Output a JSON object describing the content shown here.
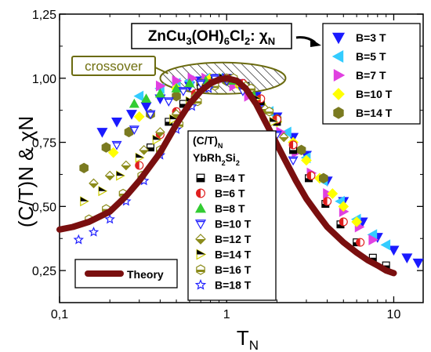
{
  "chart_data": {
    "type": "scatter",
    "x_scale": "log",
    "xlim": [
      0.1,
      15
    ],
    "ylim": [
      0.125,
      1.25
    ],
    "x_ticks": [
      0.1,
      1,
      10
    ],
    "x_tick_labels": [
      "0,1",
      "1",
      "10"
    ],
    "y_ticks": [
      0.25,
      0.5,
      0.75,
      1.0,
      1.25
    ],
    "y_tick_labels": [
      "0,25",
      "0,50",
      "0,75",
      "1,00",
      "1,25"
    ],
    "xlabel_main": "T",
    "xlabel_sub": "N",
    "ylabel": "(C/T)N & χN",
    "title_box": "ZnCu3(OH)6Cl2: χN",
    "annotation": "crossover",
    "theory_label": "Theory",
    "legend_right_header": "",
    "legend_left_header_1": "(C/T)N",
    "legend_left_header_2": "YbRh2Si2",
    "series_zn": [
      {
        "name": "B=3 T",
        "color": "#1a1aff",
        "marker": "triangle-down",
        "x": [
          0.18,
          0.22,
          0.27,
          0.33,
          0.4,
          0.5,
          0.6,
          0.7,
          0.85,
          1.0,
          1.2,
          1.5,
          2.0,
          2.5,
          3.0,
          4.0,
          5.0,
          6.5,
          8.0,
          10.0,
          12.0,
          14.0
        ],
        "y": [
          0.79,
          0.83,
          0.86,
          0.89,
          0.92,
          0.95,
          0.97,
          0.99,
          1.0,
          1.0,
          0.98,
          0.93,
          0.85,
          0.77,
          0.7,
          0.6,
          0.52,
          0.44,
          0.38,
          0.33,
          0.3,
          0.28
        ]
      },
      {
        "name": "B=5 T",
        "color": "#33ccff",
        "marker": "triangle-left",
        "x": [
          0.3,
          0.4,
          0.5,
          0.6,
          0.75,
          0.9,
          1.1,
          1.4,
          1.8,
          2.3,
          3.0,
          3.8,
          4.8,
          6.0,
          7.5,
          9.0
        ],
        "y": [
          0.93,
          0.96,
          0.98,
          0.99,
          1.0,
          1.0,
          0.98,
          0.94,
          0.87,
          0.79,
          0.69,
          0.6,
          0.52,
          0.45,
          0.39,
          0.35
        ]
      },
      {
        "name": "B=7 T",
        "color": "#e040e0",
        "marker": "triangle-right",
        "x": [
          0.4,
          0.5,
          0.62,
          0.75,
          0.9,
          1.1,
          1.35,
          1.7,
          2.1,
          2.6,
          3.2,
          4.0,
          5.0,
          6.2,
          7.5
        ],
        "y": [
          0.97,
          0.99,
          1.0,
          1.0,
          0.99,
          0.97,
          0.93,
          0.87,
          0.79,
          0.71,
          0.63,
          0.55,
          0.48,
          0.42,
          0.37
        ]
      },
      {
        "name": "B=10 T",
        "color": "#ffff00",
        "marker": "diamond",
        "x": [
          0.21,
          0.3,
          0.5,
          0.8,
          1.2,
          1.6,
          2.0,
          2.5,
          3.0,
          3.6,
          4.3,
          5.0,
          6.0
        ],
        "y": [
          0.71,
          0.85,
          0.96,
          1.0,
          0.97,
          0.9,
          0.83,
          0.75,
          0.68,
          0.61,
          0.55,
          0.5,
          0.44
        ]
      },
      {
        "name": "B=14 T",
        "color": "#7a7a20",
        "marker": "hexagon",
        "x": [
          0.14,
          0.19,
          0.26,
          0.35,
          0.5,
          0.7,
          1.0,
          1.4,
          2.0,
          2.8,
          3.8
        ],
        "y": [
          0.65,
          0.73,
          0.79,
          0.86,
          0.93,
          0.98,
          0.99,
          0.95,
          0.84,
          0.72,
          0.61
        ]
      }
    ],
    "series_yb": [
      {
        "name": "B=4 T",
        "color": "#000000",
        "marker": "square-half",
        "x": [
          0.35,
          0.45,
          0.55,
          0.7,
          0.85,
          1.0,
          1.3,
          1.6,
          2.0,
          2.5,
          3.1,
          3.9,
          4.8,
          6.0,
          7.5,
          9.0
        ],
        "y": [
          0.73,
          0.83,
          0.9,
          0.96,
          0.99,
          1.0,
          0.97,
          0.91,
          0.83,
          0.72,
          0.61,
          0.51,
          0.43,
          0.36,
          0.3,
          0.27
        ]
      },
      {
        "name": "B=6 T",
        "color": "#e02020",
        "marker": "circle-half",
        "x": [
          0.3,
          0.4,
          0.5,
          0.65,
          0.8,
          1.0,
          1.25,
          1.6,
          2.0,
          2.5,
          3.2,
          4.0,
          5.0,
          6.3
        ],
        "y": [
          0.66,
          0.78,
          0.87,
          0.94,
          0.98,
          1.0,
          0.98,
          0.92,
          0.84,
          0.74,
          0.62,
          0.52,
          0.44,
          0.36
        ]
      },
      {
        "name": "B=8 T",
        "color": "#33cc33",
        "marker": "triangle-up",
        "x": [
          0.28,
          0.33,
          0.4,
          0.5,
          0.6,
          0.75,
          0.9,
          1.1,
          1.4
        ],
        "y": [
          0.9,
          0.92,
          0.94,
          0.96,
          0.98,
          0.99,
          1.0,
          0.99,
          0.95
        ]
      },
      {
        "name": "B=10 T",
        "color": "#2020ff",
        "marker": "triangle-down-open",
        "x": [
          0.22,
          0.28,
          0.35,
          0.45,
          0.55,
          0.7,
          0.85,
          1.0,
          1.25,
          1.6,
          2.0,
          2.5
        ],
        "y": [
          0.74,
          0.8,
          0.86,
          0.91,
          0.95,
          0.98,
          1.0,
          0.99,
          0.95,
          0.88,
          0.78,
          0.68
        ]
      },
      {
        "name": "B=12 T",
        "color": "#8b8b1a",
        "marker": "diamond-half",
        "x": [
          0.16,
          0.2,
          0.25,
          0.32,
          0.4,
          0.5,
          0.65,
          0.8,
          1.0,
          1.3,
          1.7,
          2.2
        ],
        "y": [
          0.59,
          0.62,
          0.66,
          0.72,
          0.79,
          0.86,
          0.93,
          0.97,
          1.0,
          0.97,
          0.88,
          0.77
        ]
      },
      {
        "name": "B=14 T",
        "color": "#cccc00",
        "marker": "triangle-right-half",
        "x": [
          0.14,
          0.18,
          0.23,
          0.3,
          0.38,
          0.48,
          0.6,
          0.75,
          0.95,
          1.2,
          1.5,
          1.9
        ],
        "y": [
          0.52,
          0.56,
          0.62,
          0.69,
          0.76,
          0.84,
          0.91,
          0.96,
          1.0,
          0.98,
          0.92,
          0.83
        ]
      },
      {
        "name": "B=16 T",
        "color": "#8b8b1a",
        "marker": "hexagon-half",
        "x": [
          0.15,
          0.19,
          0.24,
          0.31,
          0.4,
          0.52,
          0.67,
          0.85,
          1.1,
          1.4,
          1.8
        ],
        "y": [
          0.45,
          0.49,
          0.55,
          0.62,
          0.72,
          0.82,
          0.91,
          0.97,
          1.0,
          0.96,
          0.87
        ]
      },
      {
        "name": "B=18 T",
        "color": "#2020ff",
        "marker": "star",
        "x": [
          0.13,
          0.16,
          0.2,
          0.25,
          0.32,
          0.4,
          0.5,
          0.62,
          0.78,
          0.95
        ],
        "y": [
          0.37,
          0.4,
          0.45,
          0.52,
          0.6,
          0.7,
          0.8,
          0.89,
          0.96,
          1.0
        ]
      }
    ],
    "theory": {
      "name": "Theory",
      "color": "#7a0f0f",
      "x": [
        0.1,
        0.12,
        0.15,
        0.2,
        0.25,
        0.3,
        0.4,
        0.5,
        0.6,
        0.7,
        0.8,
        0.9,
        1.0,
        1.15,
        1.3,
        1.5,
        1.8,
        2.2,
        2.6,
        3.0,
        3.5,
        4.0,
        5.0,
        6.0,
        7.0,
        8.0,
        9.0,
        10.0
      ],
      "y": [
        0.41,
        0.42,
        0.44,
        0.48,
        0.54,
        0.6,
        0.71,
        0.82,
        0.9,
        0.95,
        0.98,
        0.995,
        1.0,
        0.99,
        0.96,
        0.9,
        0.8,
        0.69,
        0.6,
        0.53,
        0.47,
        0.42,
        0.36,
        0.32,
        0.29,
        0.27,
        0.25,
        0.24
      ]
    }
  }
}
